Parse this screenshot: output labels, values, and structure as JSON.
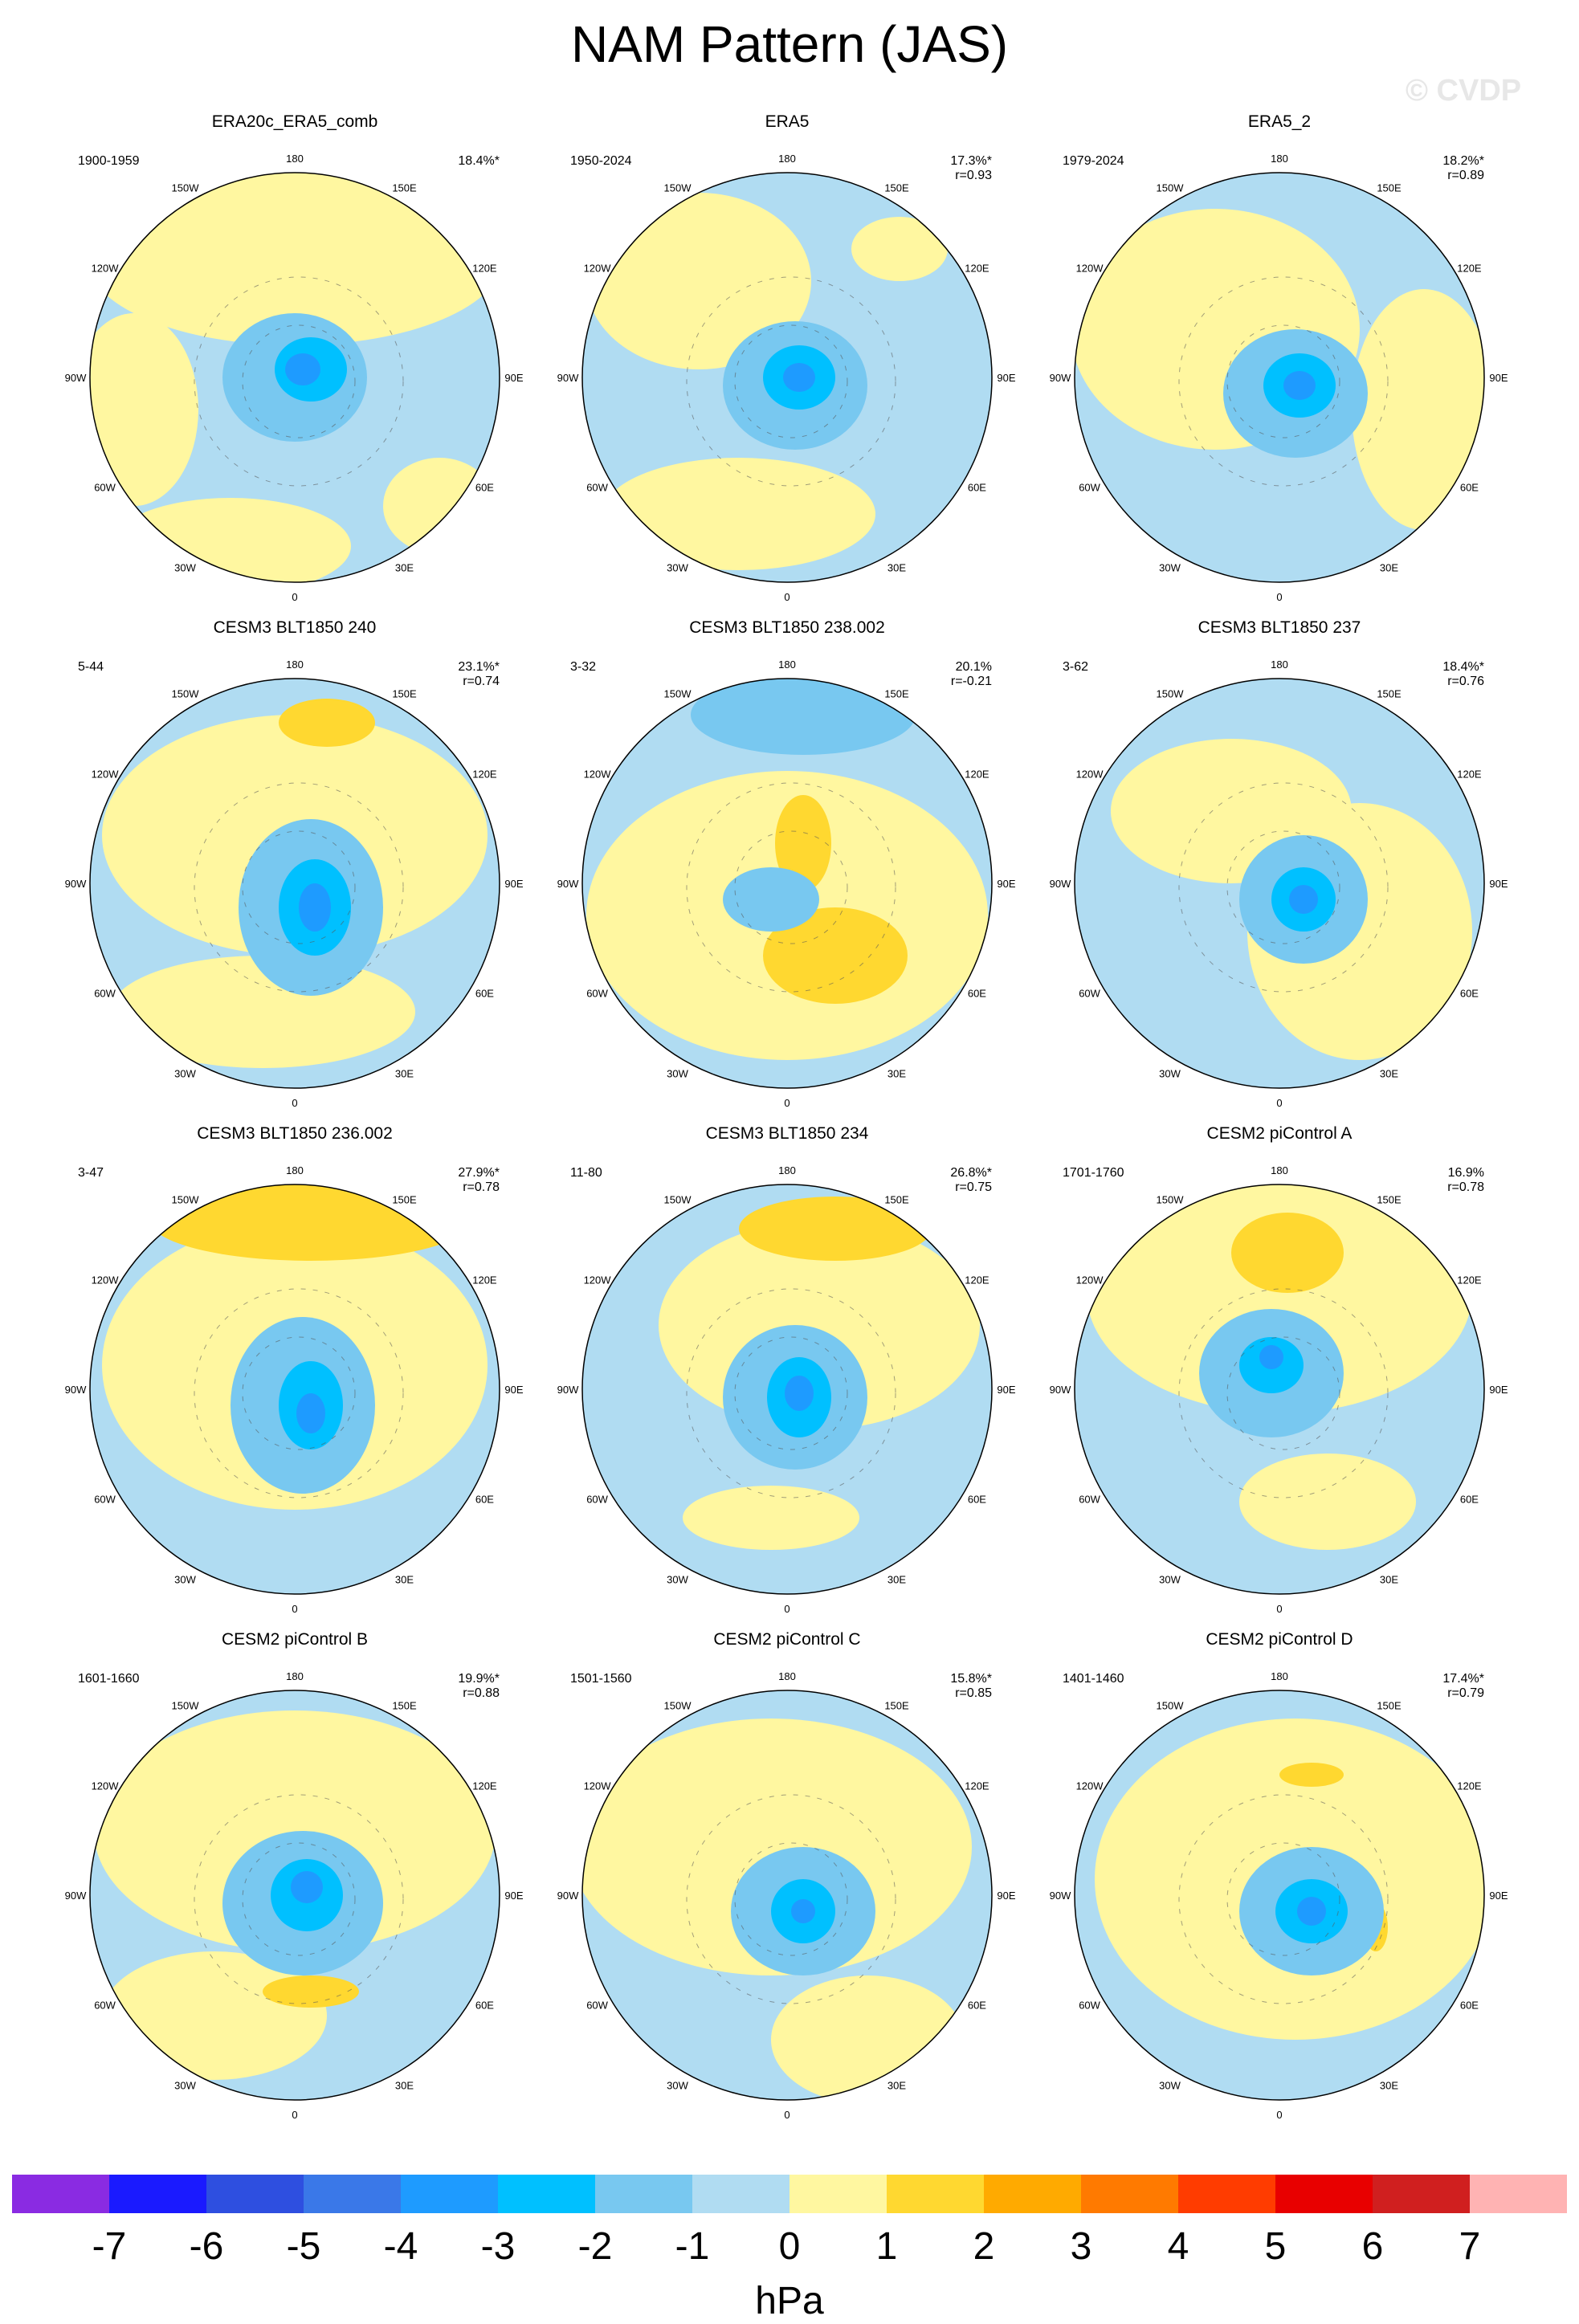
{
  "title": "NAM Pattern (JAS)",
  "watermark": "© CVDP",
  "units": "hPa",
  "colors": {
    "neg7": "#8a2be2",
    "neg6": "#1a1aff",
    "neg5": "#2e4fe0",
    "neg4": "#3a78e8",
    "neg3": "#1e9bff",
    "neg2": "#00c0ff",
    "neg1": "#78c8f0",
    "neg0": "#b0dcf2",
    "pos0": "#fff7a0",
    "pos1": "#ffd830",
    "pos2": "#ffaa00",
    "pos3": "#ff7a00",
    "pos4": "#ff3c00",
    "pos5": "#e80000",
    "pos6": "#d01f1f",
    "pos7": "#ffb3b3"
  },
  "map_longitude_labels": [
    "180",
    "150E",
    "120E",
    "90E",
    "60E",
    "30E",
    "0",
    "30W",
    "60W",
    "90W",
    "120W",
    "150W"
  ],
  "panels": [
    {
      "title": "ERA20c_ERA5_comb",
      "years": "1900-1959",
      "pct": "18.4%*",
      "r": ""
    },
    {
      "title": "ERA5",
      "years": "1950-2024",
      "pct": "17.3%*",
      "r": "r=0.93"
    },
    {
      "title": "ERA5_2",
      "years": "1979-2024",
      "pct": "18.2%*",
      "r": "r=0.89"
    },
    {
      "title": "CESM3 BLT1850 240",
      "years": "5-44",
      "pct": "23.1%*",
      "r": "r=0.74"
    },
    {
      "title": "CESM3 BLT1850 238.002",
      "years": "3-32",
      "pct": "20.1%",
      "r": "r=-0.21"
    },
    {
      "title": "CESM3 BLT1850 237",
      "years": "3-62",
      "pct": "18.4%*",
      "r": "r=0.76"
    },
    {
      "title": "CESM3 BLT1850 236.002",
      "years": "3-47",
      "pct": "27.9%*",
      "r": "r=0.78"
    },
    {
      "title": "CESM3 BLT1850 234",
      "years": "11-80",
      "pct": "26.8%*",
      "r": "r=0.75"
    },
    {
      "title": "CESM2 piControl A",
      "years": "1701-1760",
      "pct": "16.9%",
      "r": "r=0.78"
    },
    {
      "title": "CESM2 piControl B",
      "years": "1601-1660",
      "pct": "19.9%*",
      "r": "r=0.88"
    },
    {
      "title": "CESM2 piControl C",
      "years": "1501-1560",
      "pct": "15.8%*",
      "r": "r=0.85"
    },
    {
      "title": "CESM2 piControl D",
      "years": "1401-1460",
      "pct": "17.4%*",
      "r": "r=0.79"
    }
  ],
  "chart_data": {
    "type": "heatmap",
    "title": "NAM Pattern (JAS)",
    "colorbar": {
      "units": "hPa",
      "ticks": [
        "-7",
        "-6",
        "-5",
        "-4",
        "-3",
        "-2",
        "-1",
        "0",
        "1",
        "2",
        "3",
        "4",
        "5",
        "6",
        "7"
      ],
      "values": [
        -7,
        -6,
        -5,
        -4,
        -3,
        -2,
        -1,
        0,
        1,
        2,
        3,
        4,
        5,
        6,
        7
      ],
      "colors": [
        "#8a2be2",
        "#1a1aff",
        "#2e4fe0",
        "#3a78e8",
        "#1e9bff",
        "#00c0ff",
        "#78c8f0",
        "#b0dcf2",
        "#fff7a0",
        "#ffd830",
        "#ffaa00",
        "#ff7a00",
        "#ff3c00",
        "#e80000",
        "#d01f1f",
        "#ffb3b3"
      ]
    }
  }
}
